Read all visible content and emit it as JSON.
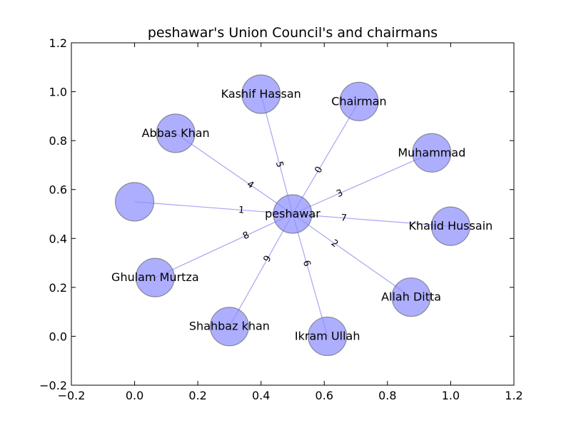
{
  "title": "peshawar's Union Council's and chairmans",
  "chart_data": {
    "type": "network",
    "title": "peshawar's Union Council's and chairmans",
    "xlim": [
      -0.2,
      1.2
    ],
    "ylim": [
      -0.2,
      1.2
    ],
    "x_ticks": [
      "−0.2",
      "0.0",
      "0.2",
      "0.4",
      "0.6",
      "0.8",
      "1.0",
      "1.2"
    ],
    "y_ticks": [
      "−0.2",
      "0.0",
      "0.2",
      "0.4",
      "0.6",
      "0.8",
      "1.0",
      "1.2"
    ],
    "x_tick_values": [
      -0.2,
      0.0,
      0.2,
      0.4,
      0.6,
      0.8,
      1.0,
      1.2
    ],
    "y_tick_values": [
      -0.2,
      0.0,
      0.2,
      0.4,
      0.6,
      0.8,
      1.0,
      1.2
    ],
    "node_color": "#8b8bff",
    "edge_color": "#8080f0",
    "hub": {
      "label": "peshawar",
      "x": 0.5,
      "y": 0.5
    },
    "nodes": [
      {
        "label": "Chairman",
        "x": 0.71,
        "y": 0.96,
        "edge_label": "0"
      },
      {
        "label": "",
        "x": 0.0,
        "y": 0.55,
        "edge_label": "1"
      },
      {
        "label": "Allah Ditta",
        "x": 0.875,
        "y": 0.16,
        "edge_label": "2"
      },
      {
        "label": "Muhammad",
        "x": 0.94,
        "y": 0.75,
        "edge_label": "3"
      },
      {
        "label": "Abbas Khan",
        "x": 0.13,
        "y": 0.83,
        "edge_label": "4"
      },
      {
        "label": "Kashif Hassan",
        "x": 0.4,
        "y": 0.99,
        "edge_label": "5"
      },
      {
        "label": "Ikram Ullah",
        "x": 0.61,
        "y": 0.0,
        "edge_label": "6"
      },
      {
        "label": "Khalid Hussain",
        "x": 1.0,
        "y": 0.45,
        "edge_label": "7"
      },
      {
        "label": "Ghulam Murtza",
        "x": 0.065,
        "y": 0.24,
        "edge_label": "8"
      },
      {
        "label": "Shahbaz khan",
        "x": 0.3,
        "y": 0.04,
        "edge_label": "9"
      }
    ]
  }
}
